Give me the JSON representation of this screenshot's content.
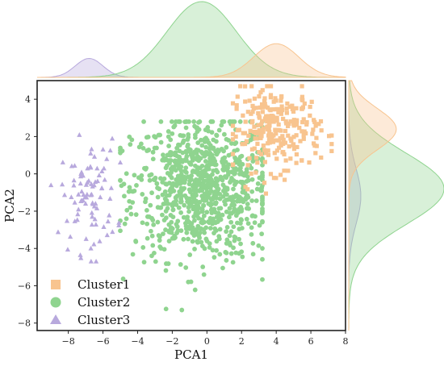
{
  "chart_data": {
    "type": "scatter",
    "xlabel": "PCA1",
    "ylabel": "PCA2",
    "xlim": [
      -9.8,
      8
    ],
    "ylim": [
      -8.4,
      5
    ],
    "xticks": [
      -8,
      -6,
      -4,
      -2,
      0,
      2,
      4,
      6,
      8
    ],
    "yticks": [
      -8,
      -6,
      -4,
      -2,
      0,
      2,
      4
    ],
    "x_tick_labels": [
      "−8",
      "−6",
      "−4",
      "−2",
      "0",
      "2",
      "4",
      "6",
      "8"
    ],
    "y_tick_labels": [
      "−8",
      "−6",
      "−4",
      "−2",
      "0",
      "2",
      "4"
    ],
    "grid": false,
    "legend_position": "lower-left",
    "marginal_plots": "kde",
    "series": [
      {
        "name": "Cluster1",
        "marker": "square",
        "color": "#f8c48f",
        "center": [
          4.0,
          2.4
        ],
        "spread": [
          1.3,
          1.1
        ],
        "count": 260,
        "x_range": [
          1.5,
          7.2
        ],
        "y_range": [
          -2.3,
          4.7
        ]
      },
      {
        "name": "Cluster2",
        "marker": "circle",
        "color": "#8fd48f",
        "center": [
          -0.3,
          -0.8
        ],
        "spread": [
          2.0,
          1.9
        ],
        "count": 900,
        "x_range": [
          -5.0,
          3.2
        ],
        "y_range": [
          -7.3,
          2.8
        ]
      },
      {
        "name": "Cluster3",
        "marker": "triangle",
        "color": "#b8a9dd",
        "center": [
          -6.8,
          -1.2
        ],
        "spread": [
          0.8,
          1.5
        ],
        "count": 90,
        "x_range": [
          -9.0,
          -5.0
        ],
        "y_range": [
          -4.7,
          2.6
        ]
      }
    ]
  }
}
